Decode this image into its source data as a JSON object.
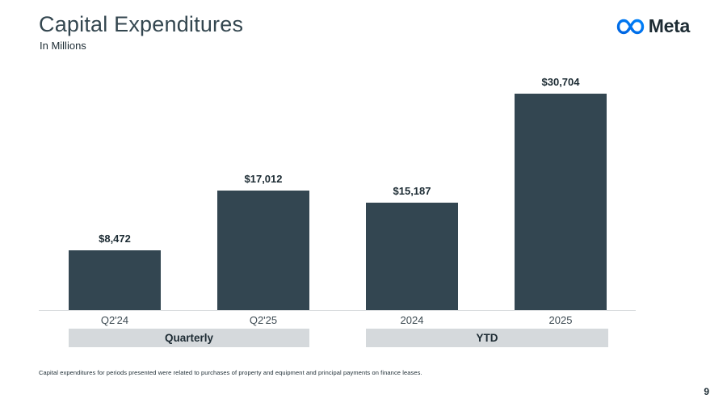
{
  "header": {
    "title": "Capital Expenditures",
    "subtitle": "In Millions",
    "logo_text": "Meta"
  },
  "chart_data": {
    "type": "bar",
    "title": "Capital Expenditures",
    "subtitle": "In Millions",
    "ylim": [
      0,
      30704
    ],
    "grid": false,
    "bar_color": "#334651",
    "groups": [
      {
        "label": "Quarterly",
        "categories": [
          "Q2'24",
          "Q2'25"
        ],
        "values": [
          8472,
          17012
        ],
        "display_values": [
          "$8,472",
          "$17,012"
        ]
      },
      {
        "label": "YTD",
        "categories": [
          "2024",
          "2025"
        ],
        "values": [
          15187,
          30704
        ],
        "display_values": [
          "$15,187",
          "$30,704"
        ]
      }
    ]
  },
  "footnote": "Capital expenditures for periods presented were related to purchases of property and equipment and principal payments on finance leases.",
  "page_number": "9",
  "colors": {
    "bar": "#334651",
    "band_background": "#d5d9dc",
    "axis_line": "#d9dcde",
    "title_text": "#33464f",
    "dark_text": "#1c2b33",
    "logo_gradient_start": "#0064e0",
    "logo_gradient_end": "#0082fb"
  }
}
